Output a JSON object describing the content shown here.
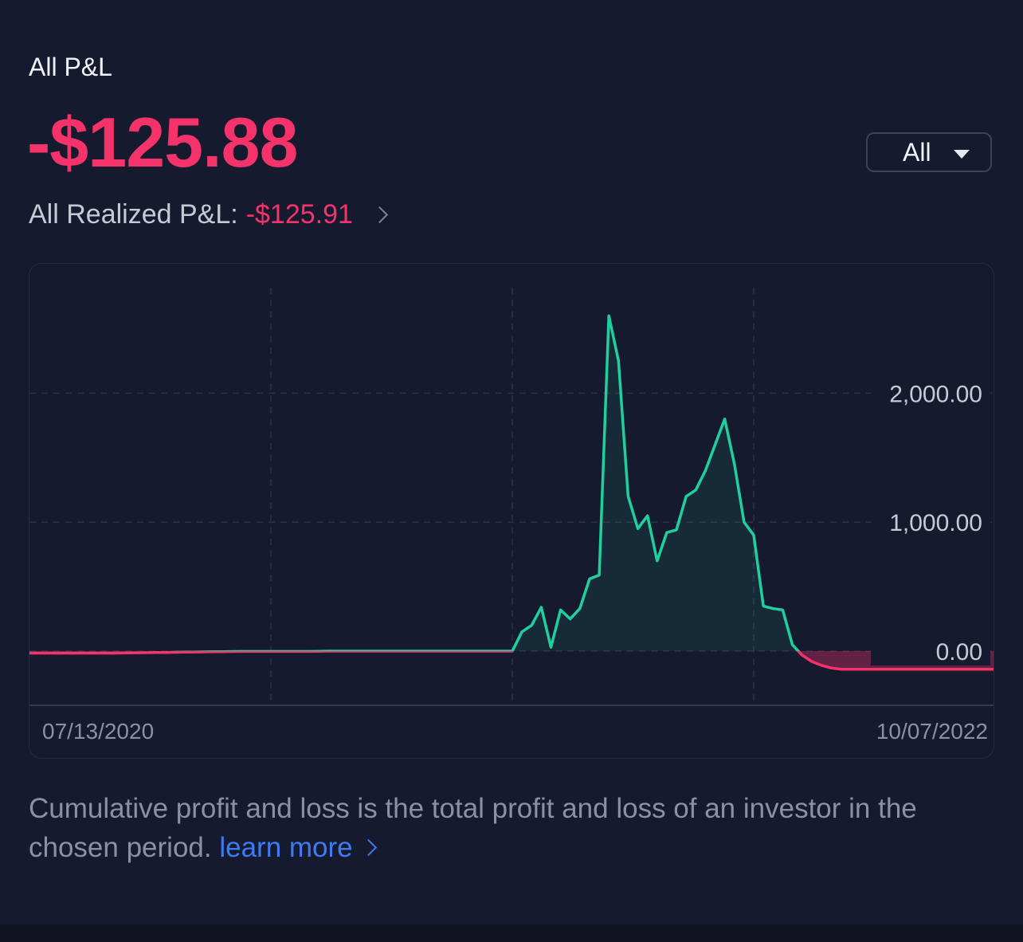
{
  "header": {
    "label": "All P&L",
    "total_value": "-$125.88"
  },
  "period_select": {
    "value": "All"
  },
  "realized": {
    "label": "All Realized P&L:",
    "value": "-$125.91"
  },
  "colors": {
    "background": "#151a2e",
    "positive": "#1fcf9e",
    "negative": "#f5336b",
    "link": "#3e7bf2",
    "muted_text": "#8b90a5"
  },
  "description": {
    "text": "Cumulative profit and loss is the total profit and loss of an investor in the chosen period.",
    "link_label": "learn more"
  },
  "chart_data": {
    "type": "line",
    "title": "",
    "xlabel": "",
    "ylabel": "",
    "x_start_label": "07/13/2020",
    "x_end_label": "10/07/2022",
    "y_ticks": [
      {
        "value": 2000,
        "label": "2,000.00"
      },
      {
        "value": 1000,
        "label": "1,000.00"
      },
      {
        "value": 0,
        "label": "0.00"
      }
    ],
    "ylim": [
      -420,
      2880
    ],
    "grid": true,
    "series": [
      {
        "values": [
          -15,
          -15,
          -15,
          -15,
          -15,
          -15,
          -15,
          -15,
          -15,
          -15,
          -14,
          -13,
          -12,
          -11,
          -10,
          -9,
          -8,
          -7,
          -6,
          -5,
          -4,
          -3,
          -2,
          -2,
          -2,
          -2,
          -2,
          -2,
          -2,
          -2,
          -1,
          0,
          0,
          0,
          0,
          0,
          0,
          0,
          0,
          0,
          0,
          0,
          0,
          0,
          0,
          0,
          0,
          0,
          0,
          0,
          0,
          150,
          200,
          340,
          30,
          320,
          250,
          330,
          560,
          590,
          2600,
          2250,
          1200,
          950,
          1050,
          700,
          920,
          940,
          1200,
          1250,
          1400,
          1600,
          1800,
          1450,
          1000,
          900,
          350,
          330,
          320,
          50,
          -30,
          -80,
          -110,
          -130,
          -140,
          -140,
          -140,
          -140,
          -140,
          -140,
          -140,
          -140,
          -140,
          -140,
          -140,
          -140,
          -140,
          -140,
          -140,
          -140,
          -140
        ]
      }
    ]
  }
}
